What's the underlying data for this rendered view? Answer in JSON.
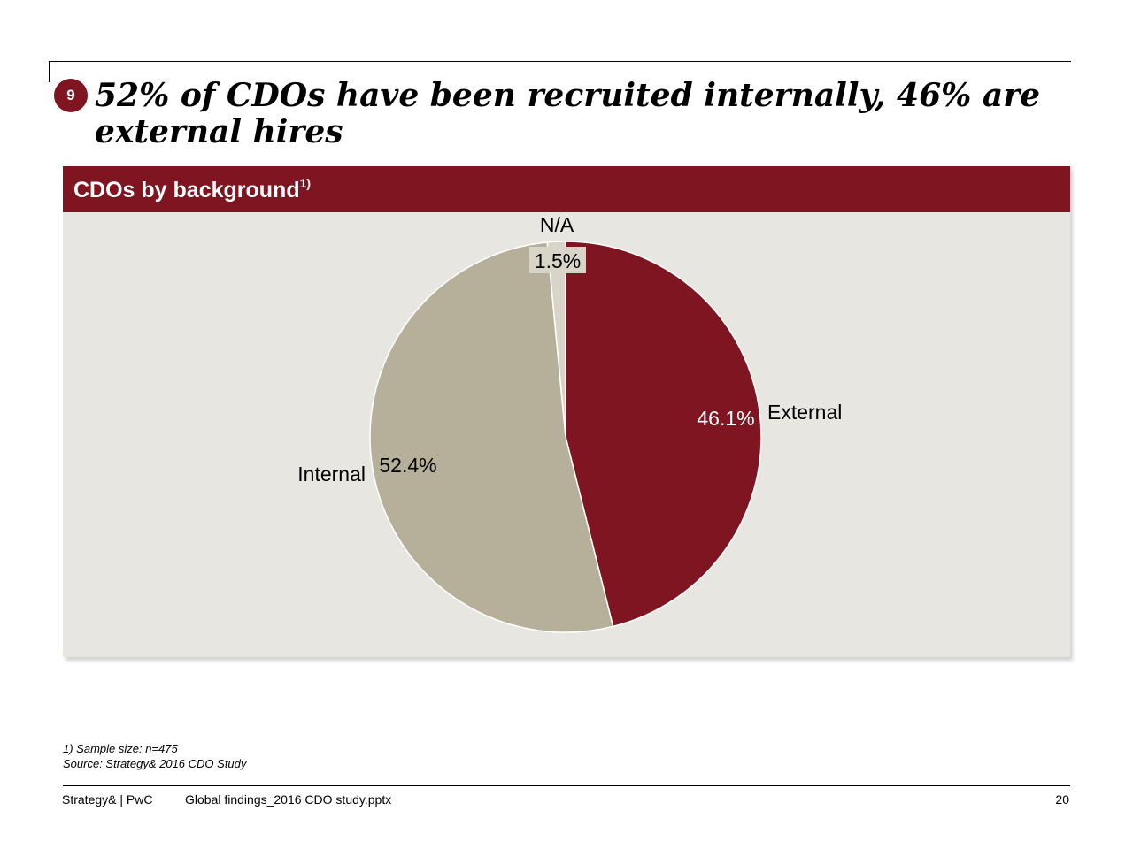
{
  "slide": {
    "badge": "9",
    "title": "52% of CDOs have been recruited internally, 46% are external hires"
  },
  "panel": {
    "header": "CDOs by background",
    "header_sup": "1)"
  },
  "chart_data": {
    "type": "pie",
    "title": "CDOs by background",
    "slices": [
      {
        "label": "External",
        "value": 46.1,
        "value_label": "46.1%",
        "color": "#7f1520"
      },
      {
        "label": "Internal",
        "value": 52.4,
        "value_label": "52.4%",
        "color": "#b6af9a"
      },
      {
        "label": "N/A",
        "value": 1.5,
        "value_label": "1.5%",
        "color": "#d8d4c8"
      }
    ],
    "legend": "none"
  },
  "footnotes": {
    "line1": "1) Sample size: n=475",
    "line2": "Source: Strategy& 2016 CDO Study"
  },
  "footer": {
    "brand": "Strategy& | PwC",
    "file": "Global findings_2016 CDO study.pptx",
    "page": "20"
  },
  "colors": {
    "accent": "#7f1520",
    "panel_bg": "#e8e6e1",
    "internal": "#b6af9a"
  }
}
